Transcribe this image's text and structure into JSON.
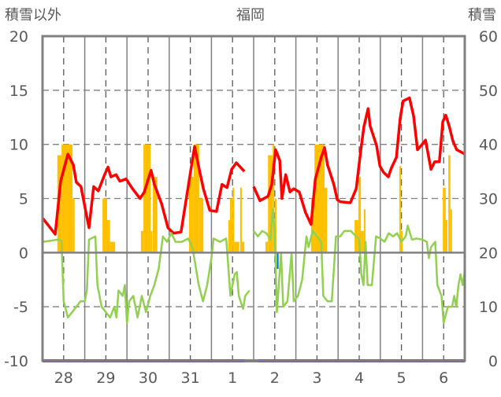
{
  "chart_data": {
    "type": "line",
    "title": "福岡",
    "left_axis_label": "積雪以外",
    "right_axis_label": "積雪",
    "ylim_left": [
      -10,
      20
    ],
    "ylim_right": [
      0,
      60
    ],
    "yticks_left": [
      "20",
      "15",
      "10",
      "5",
      "0",
      "-5",
      "-10"
    ],
    "yticks_left_values": [
      20,
      15,
      10,
      5,
      0,
      -5,
      -10
    ],
    "yticks_right": [
      "60",
      "50",
      "40",
      "30",
      "20",
      "10",
      "0"
    ],
    "x_range_days": [
      0,
      10
    ],
    "x_tick_labels": [
      "28",
      "29",
      "30",
      "31",
      "1",
      "2",
      "3",
      "4",
      "5",
      "6"
    ],
    "grid": true,
    "colors": {
      "temp": "#ff0000",
      "second": "#92d050",
      "precip": "#ffc000",
      "negative_bar": "#0070c0",
      "snow": "#7030a0",
      "axis": "#808080"
    },
    "series": [
      {
        "name": "red",
        "color": "#ff0000",
        "points": [
          [
            0,
            3.2
          ],
          [
            0.3,
            1.7
          ],
          [
            0.43,
            6.6
          ],
          [
            0.6,
            9.1
          ],
          [
            0.73,
            8.1
          ],
          [
            0.8,
            6.5
          ],
          [
            0.91,
            6.1
          ],
          [
            1.01,
            4.1
          ],
          [
            1.1,
            2.3
          ],
          [
            1.21,
            6.1
          ],
          [
            1.32,
            5.7
          ],
          [
            1.47,
            7.2
          ],
          [
            1.55,
            7.9
          ],
          [
            1.62,
            7.0
          ],
          [
            1.74,
            7.2
          ],
          [
            1.83,
            6.6
          ],
          [
            1.98,
            6.8
          ],
          [
            2.13,
            5.9
          ],
          [
            2.31,
            5.0
          ],
          [
            2.41,
            5.6
          ],
          [
            2.52,
            7.0
          ],
          [
            2.57,
            7.6
          ],
          [
            2.65,
            6.3
          ],
          [
            2.82,
            4.5
          ],
          [
            2.97,
            2.3
          ],
          [
            3.1,
            1.8
          ],
          [
            3.28,
            1.9
          ],
          [
            3.47,
            6.6
          ],
          [
            3.6,
            9.8
          ],
          [
            3.71,
            7.7
          ],
          [
            3.81,
            5.9
          ],
          [
            3.96,
            3.9
          ],
          [
            4.12,
            3.8
          ],
          [
            4.25,
            6.3
          ],
          [
            4.37,
            6.0
          ],
          [
            4.48,
            7.7
          ],
          [
            4.59,
            8.3
          ],
          [
            4.66,
            8.0
          ],
          [
            4.78,
            7.5
          ],
          null,
          [
            5.0,
            6.1
          ],
          [
            5.15,
            4.8
          ],
          [
            5.34,
            5.2
          ],
          [
            5.43,
            6.3
          ],
          [
            5.52,
            9.5
          ],
          [
            5.62,
            8.5
          ],
          [
            5.67,
            5.0
          ],
          [
            5.76,
            7.2
          ],
          [
            5.86,
            5.6
          ],
          [
            5.95,
            5.9
          ],
          [
            6.08,
            5.6
          ],
          [
            6.23,
            3.7
          ],
          [
            6.36,
            2.6
          ],
          [
            6.46,
            6.8
          ],
          [
            6.6,
            8.8
          ],
          [
            6.68,
            9.7
          ],
          [
            6.75,
            8.1
          ],
          [
            6.9,
            6.3
          ],
          [
            6.98,
            4.9
          ],
          [
            7.05,
            4.7
          ],
          [
            7.29,
            4.6
          ],
          [
            7.43,
            5.9
          ],
          [
            7.54,
            9.5
          ],
          [
            7.61,
            11.6
          ],
          [
            7.71,
            13.3
          ],
          [
            7.76,
            11.7
          ],
          [
            7.91,
            9.9
          ],
          [
            7.99,
            8.0
          ],
          [
            8.08,
            7.4
          ],
          [
            8.19,
            7.0
          ],
          [
            8.26,
            7.8
          ],
          [
            8.38,
            8.8
          ],
          [
            8.47,
            12.4
          ],
          [
            8.54,
            14.0
          ],
          [
            8.69,
            14.3
          ],
          [
            8.79,
            12.6
          ],
          [
            8.88,
            9.5
          ],
          [
            8.97,
            9.9
          ],
          [
            9.07,
            10.4
          ],
          [
            9.2,
            7.7
          ],
          [
            9.29,
            8.4
          ],
          [
            9.4,
            8.4
          ],
          [
            9.48,
            12.1
          ],
          [
            9.55,
            12.7
          ],
          [
            9.63,
            11.7
          ],
          [
            9.72,
            10.3
          ],
          [
            9.81,
            9.5
          ],
          [
            9.91,
            9.3
          ],
          [
            10.0,
            9.1
          ]
        ]
      },
      {
        "name": "green",
        "color": "#92d050",
        "points": [
          [
            0,
            1.0
          ],
          [
            0.2,
            1.1
          ],
          [
            0.35,
            1.2
          ],
          [
            0.45,
            1.1
          ],
          [
            0.5,
            -4.5
          ],
          [
            0.6,
            -6
          ],
          [
            0.7,
            -5.5
          ],
          [
            0.8,
            -5.0
          ],
          [
            0.9,
            -4.5
          ],
          [
            1.0,
            -4.5
          ],
          [
            1.05,
            -3.5
          ],
          [
            1.1,
            1.2
          ],
          [
            1.25,
            1.5
          ],
          [
            1.3,
            -3
          ],
          [
            1.4,
            -5
          ],
          [
            1.5,
            -5.5
          ],
          [
            1.6,
            -6
          ],
          [
            1.7,
            -5
          ],
          [
            1.75,
            -6
          ],
          [
            1.8,
            -3.5
          ],
          [
            1.9,
            -4
          ],
          [
            1.95,
            -3
          ],
          [
            2.0,
            -6.5
          ],
          [
            2.05,
            -4.5
          ],
          [
            2.15,
            -4
          ],
          [
            2.25,
            -6
          ],
          [
            2.35,
            -4
          ],
          [
            2.45,
            -5.5
          ],
          [
            2.55,
            -4
          ],
          [
            2.65,
            -3
          ],
          [
            2.75,
            -1.5
          ],
          [
            2.85,
            1.5
          ],
          [
            2.95,
            1.0
          ],
          [
            3.05,
            1.8
          ],
          [
            3.15,
            1.0
          ],
          [
            3.3,
            1.0
          ],
          [
            3.45,
            1.3
          ],
          [
            3.55,
            0.5
          ],
          [
            3.7,
            -3
          ],
          [
            3.8,
            -4.5
          ],
          [
            3.9,
            -3
          ],
          [
            4.0,
            -0.5
          ],
          [
            4.05,
            1.3
          ],
          [
            4.2,
            1.0
          ],
          [
            4.35,
            1.3
          ],
          [
            4.45,
            -4
          ],
          [
            4.55,
            -2
          ],
          [
            4.6,
            -1.8
          ],
          [
            4.65,
            -4
          ],
          [
            4.75,
            -5.2
          ],
          [
            4.8,
            -4
          ],
          [
            4.9,
            -3.5
          ],
          null,
          [
            5.0,
            2.0
          ],
          [
            5.1,
            1.5
          ],
          [
            5.2,
            2.0
          ],
          [
            5.3,
            1.8
          ],
          [
            5.4,
            1.2
          ],
          [
            5.45,
            4
          ],
          [
            5.5,
            2
          ],
          [
            5.55,
            -5.5
          ],
          [
            5.65,
            0
          ],
          [
            5.7,
            -5
          ],
          [
            5.8,
            -4.5
          ],
          [
            5.9,
            0
          ],
          [
            5.95,
            -4.5
          ],
          [
            6.05,
            -4.0
          ],
          [
            6.15,
            -2.5
          ],
          [
            6.25,
            1.5
          ],
          [
            6.3,
            0.5
          ],
          [
            6.4,
            2.0
          ],
          [
            6.5,
            1.5
          ],
          [
            6.6,
            1.0
          ],
          [
            6.65,
            -4
          ],
          [
            6.75,
            -4.5
          ],
          [
            6.85,
            -4.5
          ],
          [
            6.95,
            1.5
          ],
          [
            7.05,
            1.5
          ],
          [
            7.15,
            2.0
          ],
          [
            7.3,
            2.0
          ],
          [
            7.4,
            1.6
          ],
          [
            7.5,
            1.2
          ],
          [
            7.55,
            -2
          ],
          [
            7.6,
            -3
          ],
          [
            7.65,
            1
          ],
          [
            7.7,
            -3
          ],
          [
            7.8,
            -3
          ],
          [
            7.9,
            1.5
          ],
          [
            8.0,
            1.3
          ],
          [
            8.1,
            1.0
          ],
          [
            8.2,
            1.8
          ],
          [
            8.3,
            1.5
          ],
          [
            8.4,
            1.8
          ],
          [
            8.5,
            1.0
          ],
          [
            8.6,
            1.5
          ],
          [
            8.65,
            2.5
          ],
          [
            8.75,
            1.2
          ],
          [
            8.85,
            1.3
          ],
          [
            9.0,
            1.2
          ],
          [
            9.1,
            1.0
          ],
          [
            9.15,
            -0.5
          ],
          [
            9.2,
            0.5
          ],
          [
            9.3,
            1.0
          ],
          [
            9.35,
            -3
          ],
          [
            9.45,
            -4
          ],
          [
            9.5,
            -6.5
          ],
          [
            9.6,
            -5
          ],
          [
            9.7,
            -5
          ],
          [
            9.75,
            -4
          ],
          [
            9.8,
            -5
          ],
          [
            9.85,
            -3
          ],
          [
            9.9,
            -2
          ],
          [
            9.95,
            -3
          ],
          [
            10.0,
            -1.8
          ]
        ]
      }
    ],
    "bars": [
      [
        0.35,
        0.45,
        9
      ],
      [
        0.45,
        0.71,
        10
      ],
      [
        0.71,
        0.76,
        5
      ],
      [
        1.42,
        1.53,
        5
      ],
      [
        1.53,
        1.6,
        3
      ],
      [
        1.6,
        1.72,
        1
      ],
      [
        2.33,
        2.39,
        2
      ],
      [
        2.39,
        2.56,
        10
      ],
      [
        2.56,
        2.6,
        2
      ],
      [
        2.61,
        2.72,
        7
      ],
      [
        3.47,
        3.58,
        7
      ],
      [
        3.58,
        3.71,
        10
      ],
      [
        3.71,
        3.81,
        5
      ],
      [
        4.4,
        4.44,
        3
      ],
      [
        4.44,
        4.5,
        5
      ],
      [
        4.5,
        4.54,
        6
      ],
      [
        4.54,
        4.66,
        1
      ],
      [
        4.68,
        4.72,
        6
      ],
      [
        4.72,
        4.78,
        1
      ],
      [
        5.28,
        5.34,
        1
      ],
      [
        5.34,
        5.45,
        9
      ],
      [
        5.45,
        5.49,
        10
      ],
      [
        5.5,
        5.54,
        5
      ],
      [
        6.36,
        6.44,
        5
      ],
      [
        6.44,
        6.68,
        10
      ],
      [
        6.68,
        6.74,
        6
      ],
      [
        7.39,
        7.48,
        3
      ],
      [
        7.48,
        7.54,
        7
      ],
      [
        7.54,
        7.61,
        2
      ],
      [
        7.61,
        7.65,
        4
      ],
      [
        8.45,
        8.49,
        8
      ],
      [
        8.49,
        8.53,
        2
      ],
      [
        9.48,
        9.55,
        6
      ],
      [
        9.55,
        9.59,
        3
      ],
      [
        9.61,
        9.66,
        9
      ],
      [
        9.66,
        9.7,
        4
      ]
    ],
    "negative_bars": [
      [
        5.55,
        5.59,
        -1.5
      ]
    ],
    "snow_series": [
      [
        0,
        0
      ],
      [
        4.8,
        0
      ],
      null,
      [
        5.1,
        0
      ],
      [
        10,
        0
      ]
    ]
  }
}
